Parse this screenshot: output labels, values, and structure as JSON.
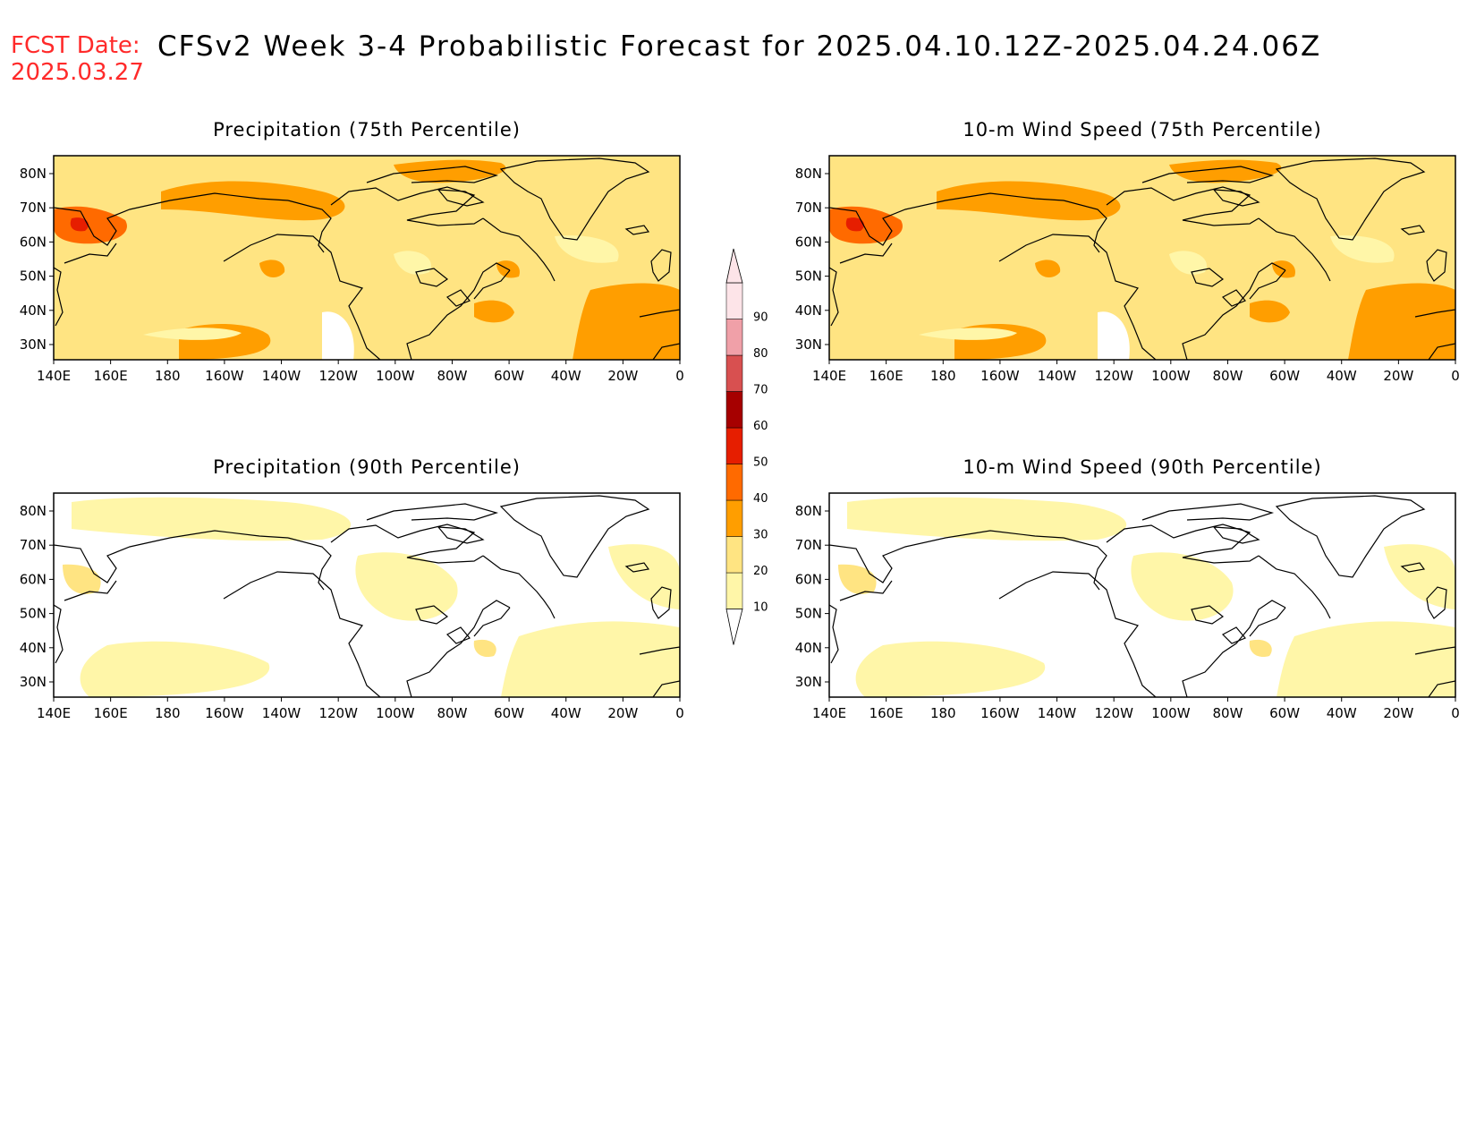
{
  "header": {
    "fcst_label": "FCST Date:",
    "fcst_date": "2025.03.27",
    "title": "CFSv2 Week 3-4 Probabilistic Forecast for 2025.04.10.12Z-2025.04.24.06Z"
  },
  "axes": {
    "lon_labels": [
      "140E",
      "160E",
      "180",
      "160W",
      "140W",
      "120W",
      "100W",
      "80W",
      "60W",
      "40W",
      "20W",
      "0"
    ],
    "lat_labels": [
      "80N",
      "70N",
      "60N",
      "50N",
      "40N",
      "30N"
    ]
  },
  "panels": [
    {
      "title": "Precipitation (75th Percentile)",
      "level": "high",
      "colored_base": true
    },
    {
      "title": "10-m Wind Speed (75th Percentile)",
      "level": "high",
      "colored_base": true
    },
    {
      "title": "Precipitation (90th Percentile)",
      "level": "low",
      "colored_base": false
    },
    {
      "title": "10-m Wind Speed (90th Percentile)",
      "level": "low",
      "colored_base": false
    }
  ],
  "colorbar": {
    "levels": [
      "10",
      "20",
      "30",
      "40",
      "50",
      "60",
      "70",
      "80",
      "90"
    ],
    "colors": [
      "#fff6a8",
      "#ffe482",
      "#ff9e00",
      "#ff6a00",
      "#e61e00",
      "#a60000",
      "#d85050",
      "#f0a0a8",
      "#fde4e8"
    ]
  }
}
